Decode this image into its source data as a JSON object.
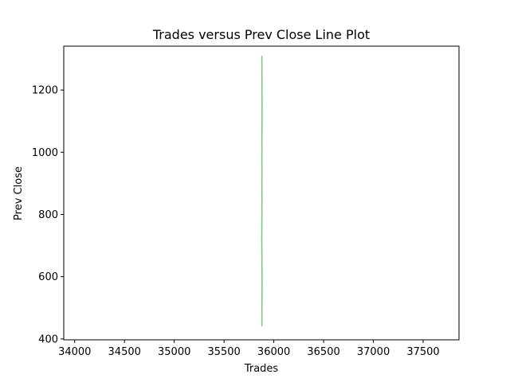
{
  "chart_data": {
    "type": "line",
    "title": "Trades versus Prev Close Line Plot",
    "xlabel": "Trades",
    "ylabel": "Prev Close",
    "xlim": [
      33890,
      37860
    ],
    "ylim": [
      397,
      1341
    ],
    "xticks": [
      34000,
      34500,
      35000,
      35500,
      36000,
      36500,
      37000,
      37500
    ],
    "yticks": [
      400,
      600,
      800,
      1000,
      1200
    ],
    "grid": false,
    "series": [
      {
        "color": "#77c777",
        "x": [
          35880,
          35882,
          35879,
          35881,
          35880,
          35882,
          35880
        ],
        "y": [
          440,
          590,
          720,
          850,
          980,
          1150,
          1310
        ]
      }
    ]
  }
}
